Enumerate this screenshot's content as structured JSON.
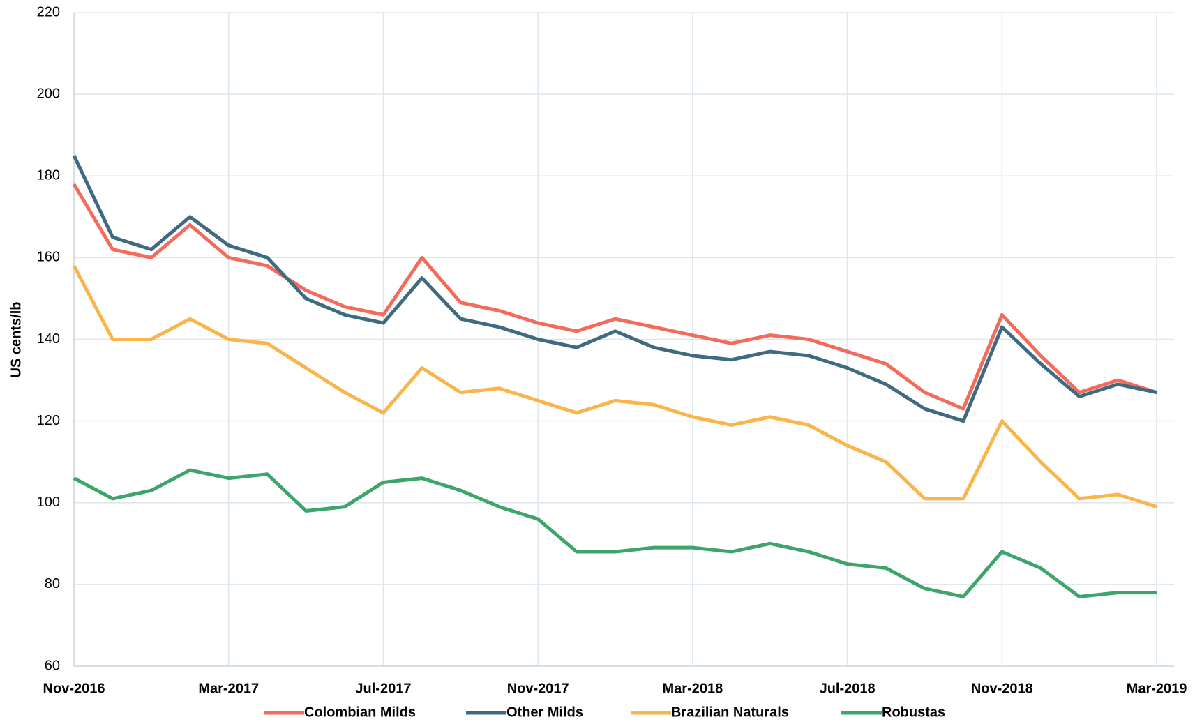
{
  "chart_data": {
    "type": "line",
    "y_label": "US cents/lb",
    "categories": [
      "Nov-2016",
      null,
      null,
      null,
      "Mar-2017",
      null,
      null,
      null,
      "Jul-2017",
      null,
      null,
      null,
      "Nov-2017",
      null,
      null,
      null,
      "Mar-2018",
      null,
      null,
      null,
      "Jul-2018",
      null,
      null,
      null,
      "Nov-2018",
      null,
      null,
      null,
      "Mar-2019"
    ],
    "series": [
      {
        "name": "Colombian Milds",
        "color": "#f26b5b",
        "values": [
          178,
          162,
          160,
          168,
          160,
          158,
          152,
          148,
          146,
          160,
          149,
          147,
          144,
          142,
          145,
          143,
          141,
          139,
          141,
          140,
          137,
          134,
          127,
          123,
          146,
          136,
          127,
          130,
          127
        ]
      },
      {
        "name": "Other Milds",
        "color": "#3f6a82",
        "values": [
          185,
          165,
          162,
          170,
          163,
          160,
          150,
          146,
          144,
          155,
          145,
          143,
          140,
          138,
          142,
          138,
          136,
          135,
          137,
          136,
          133,
          129,
          123,
          120,
          143,
          134,
          126,
          129,
          127
        ]
      },
      {
        "name": "Brazilian Naturals",
        "color": "#f9b54a",
        "values": [
          158,
          140,
          140,
          145,
          140,
          139,
          133,
          127,
          122,
          133,
          127,
          128,
          125,
          122,
          125,
          124,
          121,
          119,
          121,
          119,
          114,
          110,
          101,
          101,
          120,
          110,
          101,
          102,
          99
        ]
      },
      {
        "name": "Robustas",
        "color": "#3ea56a",
        "values": [
          106,
          101,
          103,
          108,
          106,
          107,
          98,
          99,
          105,
          106,
          103,
          99,
          96,
          88,
          88,
          89,
          89,
          88,
          90,
          88,
          85,
          84,
          79,
          77,
          88,
          84,
          77,
          78,
          78
        ]
      }
    ],
    "ylim": [
      60,
      220
    ],
    "yticks": [
      60,
      80,
      100,
      120,
      140,
      160,
      180,
      200,
      220
    ],
    "grid": true,
    "legend": "bottom"
  }
}
